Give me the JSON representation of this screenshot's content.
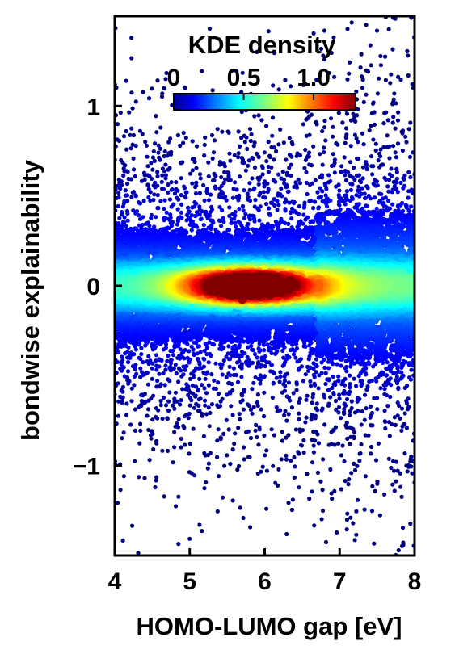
{
  "chart_data": {
    "type": "scatter",
    "subtype": "density-colored scatter (KDE)",
    "xlabel": "HOMO-LUMO gap [eV]",
    "ylabel": "bondwise explainability",
    "xlim": [
      4,
      8
    ],
    "ylim": [
      -1.5,
      1.5
    ],
    "x_ticks": [
      4,
      5,
      6,
      7,
      8
    ],
    "y_ticks": [
      -1,
      0,
      1
    ],
    "x_tick_labels": [
      "4",
      "5",
      "6",
      "7",
      "8"
    ],
    "y_tick_labels": [
      "−1",
      "0",
      "1"
    ],
    "grid": false,
    "colorbar": {
      "title": "KDE density",
      "range": [
        0,
        1.3
      ],
      "ticks": [
        0,
        0.5,
        1.0
      ],
      "tick_labels": [
        "0",
        "0.5",
        "1.0"
      ],
      "colormap": "jet",
      "placement": "top-inside"
    },
    "distribution": {
      "description_points": "thousands of points, symmetric about y = 0, widest spread at lower-left and right edges",
      "peak_density_location": {
        "x": 5.8,
        "y": 0.0,
        "density": 1.3
      },
      "secondary_hot_spots": [
        {
          "x": 5.5,
          "y": 0.0,
          "density": 1.05
        },
        {
          "x": 6.5,
          "y": 0.0,
          "density": 1.0
        },
        {
          "x": 5.2,
          "y": 0.0,
          "density": 0.85
        }
      ]
    }
  },
  "colors": {
    "low_density": "#00008f",
    "mid_density": "#20e0ff",
    "high_density": "#ff2000",
    "peak_density": "#800000",
    "axis": "#000000",
    "background": "#ffffff"
  }
}
